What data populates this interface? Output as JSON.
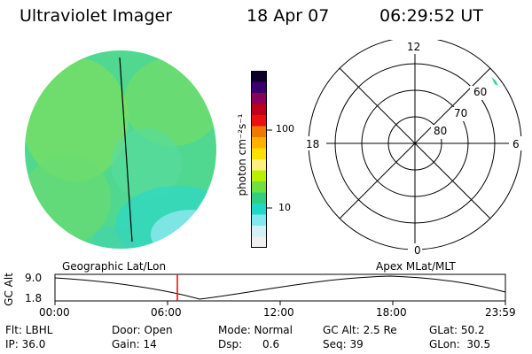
{
  "header": {
    "title": "Ultraviolet Imager",
    "date": "18 Apr 07",
    "time": "06:29:52 UT"
  },
  "colorbar": {
    "unit_label": "photon cm⁻²s⁻¹",
    "ticks": [
      "100",
      "10"
    ],
    "colors": [
      "#0d0028",
      "#3a006e",
      "#8a005a",
      "#c00018",
      "#e81010",
      "#f07800",
      "#ffb000",
      "#ffe000",
      "#fff080",
      "#b8f000",
      "#70e040",
      "#30d080",
      "#20d8c8",
      "#80e8ee",
      "#d4f0f4",
      "#f0f0f0"
    ]
  },
  "polar": {
    "labels": [
      "12",
      "18",
      "6",
      "0",
      "60",
      "70",
      "80"
    ]
  },
  "timeline": {
    "y_label": "GC Alt",
    "y_ticks": [
      "9.0",
      "1.8"
    ],
    "left_label": "Geographic Lat/Lon",
    "right_label": "Apex MLat/MLT",
    "x_ticks": [
      "00:00",
      "06:00",
      "12:00",
      "18:00",
      "23:59"
    ],
    "marker_color": "#ff0000"
  },
  "info": {
    "filter": "Flt: LBHL",
    "door": "Door: Open",
    "mode": "Mode: Normal",
    "gc_alt": "GC Alt: 2.5 Re",
    "glat": "GLat: 50.2",
    "ip": "IP: 36.0",
    "gain": "Gain: 14",
    "dsp": "Dsp:      0.6",
    "seq": "Seq: 39",
    "glon": "GLon:  30.5"
  }
}
